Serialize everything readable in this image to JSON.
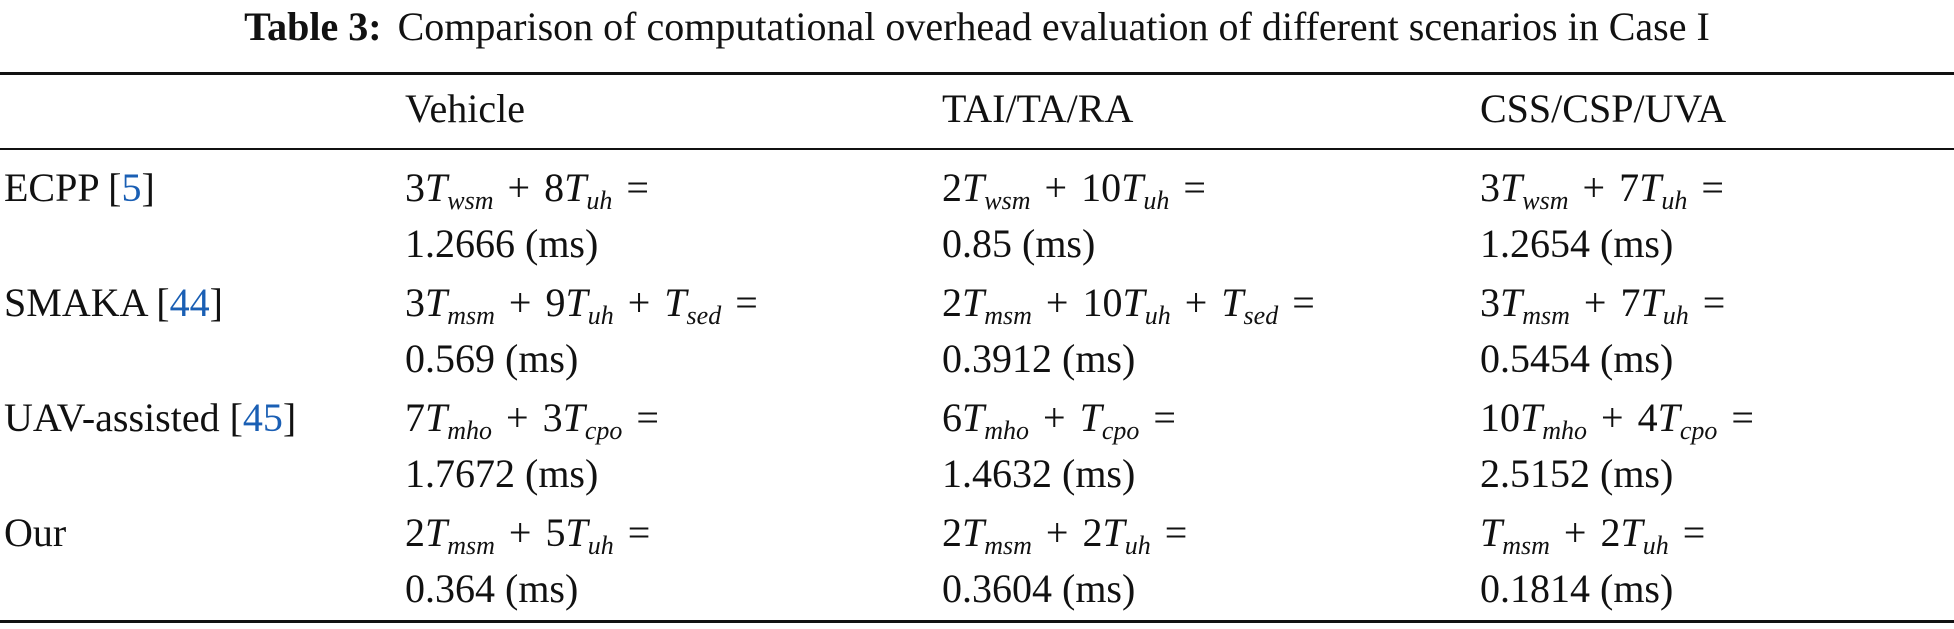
{
  "caption": {
    "label": "Table 3:",
    "text": "Comparison of computational overhead evaluation of different scenarios in Case I"
  },
  "table": {
    "headers": [
      "",
      "Vehicle",
      "TAI/TA/RA",
      "CSS/CSP/UVA"
    ],
    "rows": [
      {
        "method": "ECPP [",
        "ref": "5",
        "ref_close": "]",
        "cells": [
          {
            "formula": [
              {
                "c": "3",
                "s": "wsm"
              },
              {
                "c": "8",
                "s": "uh"
              }
            ],
            "value": "1.2666 (ms)"
          },
          {
            "formula": [
              {
                "c": "2",
                "s": "wsm"
              },
              {
                "c": "10",
                "s": "uh"
              }
            ],
            "value": "0.85 (ms)"
          },
          {
            "formula": [
              {
                "c": "3",
                "s": "wsm"
              },
              {
                "c": "7",
                "s": "uh"
              }
            ],
            "value": "1.2654 (ms)"
          }
        ]
      },
      {
        "method": "SMAKA [",
        "ref": "44",
        "ref_close": "]",
        "cells": [
          {
            "formula": [
              {
                "c": "3",
                "s": "msm"
              },
              {
                "c": "9",
                "s": "uh"
              },
              {
                "c": "",
                "s": "sed"
              }
            ],
            "value": "0.569 (ms)"
          },
          {
            "formula": [
              {
                "c": "2",
                "s": "msm"
              },
              {
                "c": "10",
                "s": "uh"
              },
              {
                "c": "",
                "s": "sed"
              }
            ],
            "value": "0.3912 (ms)",
            "italic_unit": true
          },
          {
            "formula": [
              {
                "c": "3",
                "s": "msm"
              },
              {
                "c": "7",
                "s": "uh"
              }
            ],
            "value": "0.5454  (ms)"
          }
        ]
      },
      {
        "method": "UAV-assisted [",
        "ref": "45",
        "ref_close": "]",
        "cells": [
          {
            "formula": [
              {
                "c": "7",
                "s": "mho"
              },
              {
                "c": "3",
                "s": "cpo"
              }
            ],
            "value": "1.7672 (ms)"
          },
          {
            "formula": [
              {
                "c": "6",
                "s": "mho"
              },
              {
                "c": "",
                "s": "cpo"
              }
            ],
            "value": "1.4632 (ms)"
          },
          {
            "formula": [
              {
                "c": "10",
                "s": "mho"
              },
              {
                "c": "4",
                "s": "cpo"
              }
            ],
            "value": "2.5152 (ms)"
          }
        ]
      },
      {
        "method": "Our",
        "ref": "",
        "ref_close": "",
        "cells": [
          {
            "formula": [
              {
                "c": "2",
                "s": "msm"
              },
              {
                "c": "5",
                "s": "uh"
              }
            ],
            "value": "0.364 (ms)"
          },
          {
            "formula": [
              {
                "c": "2",
                "s": "msm"
              },
              {
                "c": "2",
                "s": "uh"
              }
            ],
            "value": "0.3604 (ms)"
          },
          {
            "formula": [
              {
                "c": "",
                "s": "msm"
              },
              {
                "c": "2",
                "s": "uh"
              }
            ],
            "value": "0.1814 (ms)",
            "italic_unit": true
          }
        ]
      }
    ]
  }
}
